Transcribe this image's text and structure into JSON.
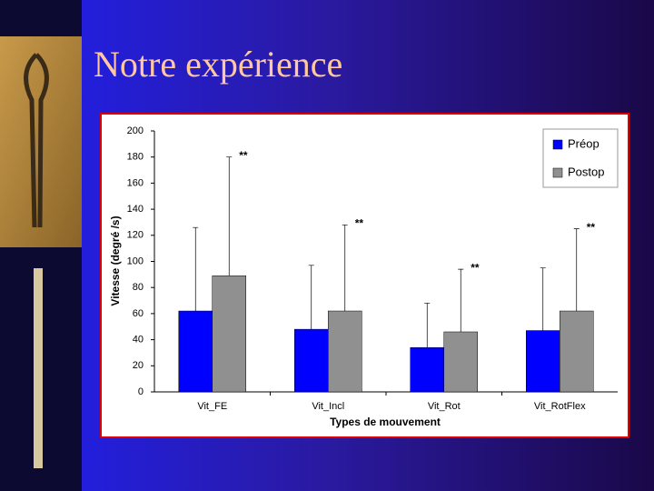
{
  "slide": {
    "title": "Notre expérience"
  },
  "chart_data": {
    "type": "bar",
    "categories": [
      "Vit_FE",
      "Vit_Incl",
      "Vit_Rot",
      "Vit_RotFlex"
    ],
    "series": [
      {
        "name": "Préop",
        "color": "#0000ff",
        "values": [
          62,
          48,
          34,
          47
        ],
        "errors": [
          64,
          49,
          34,
          48
        ]
      },
      {
        "name": "Postop",
        "color": "#909090",
        "values": [
          89,
          62,
          46,
          62
        ],
        "errors": [
          91,
          66,
          48,
          63
        ]
      }
    ],
    "annotations": [
      "**",
      "**",
      "**",
      "**"
    ],
    "ylabel": "Vitesse (degré /s)",
    "xlabel": "Types de mouvement",
    "ylim": [
      0,
      200
    ],
    "yticks": [
      0,
      20,
      40,
      60,
      80,
      100,
      120,
      140,
      160,
      180,
      200
    ],
    "legend": "top-right"
  }
}
